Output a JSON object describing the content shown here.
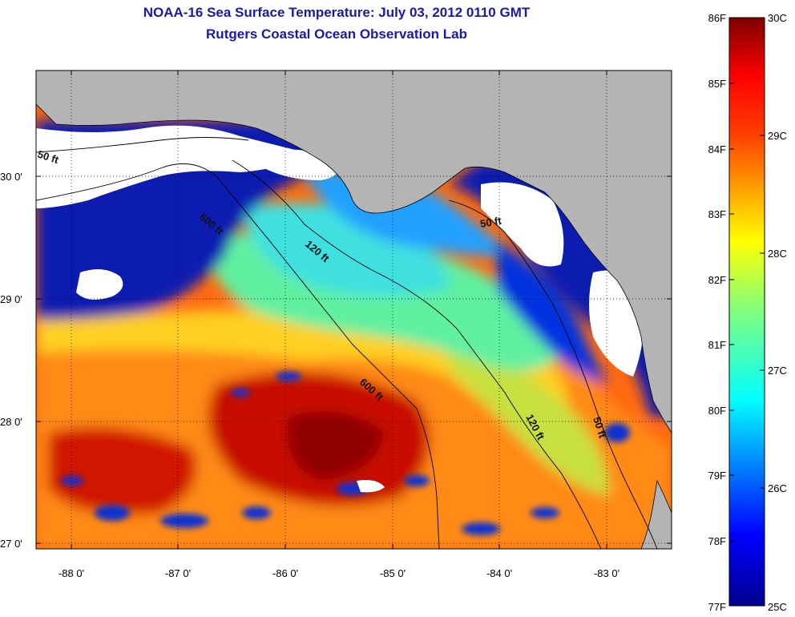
{
  "title": {
    "line1": "NOAA-16 Sea Surface Temperature:  July 03, 2012 0110 GMT",
    "line2": "Rutgers Coastal Ocean Observation Lab"
  },
  "axes": {
    "lon_labels": [
      "-88 0'",
      "-87 0'",
      "-86 0'",
      "-85 0'",
      "-84 0'",
      "-83 0'"
    ],
    "lat_labels": [
      "30 0'",
      "29 0'",
      "28 0'",
      "27 0'"
    ]
  },
  "isobaths": [
    {
      "label": "50 ft"
    },
    {
      "label": "600 ft"
    },
    {
      "label": "120 ft"
    },
    {
      "label": "50 ft"
    },
    {
      "label": "600 ft"
    },
    {
      "label": "120 ft"
    },
    {
      "label": "50 ft"
    }
  ],
  "colorbar": {
    "f_labels": [
      "86F",
      "85F",
      "84F",
      "83F",
      "82F",
      "81F",
      "80F",
      "79F",
      "78F",
      "77F"
    ],
    "c_labels": [
      "30C",
      "29C",
      "28C",
      "27C",
      "26C",
      "25C"
    ]
  },
  "colors": {
    "land": "#b4b4b4",
    "cloud": "#ffffff",
    "title": "#1a1aa8"
  }
}
